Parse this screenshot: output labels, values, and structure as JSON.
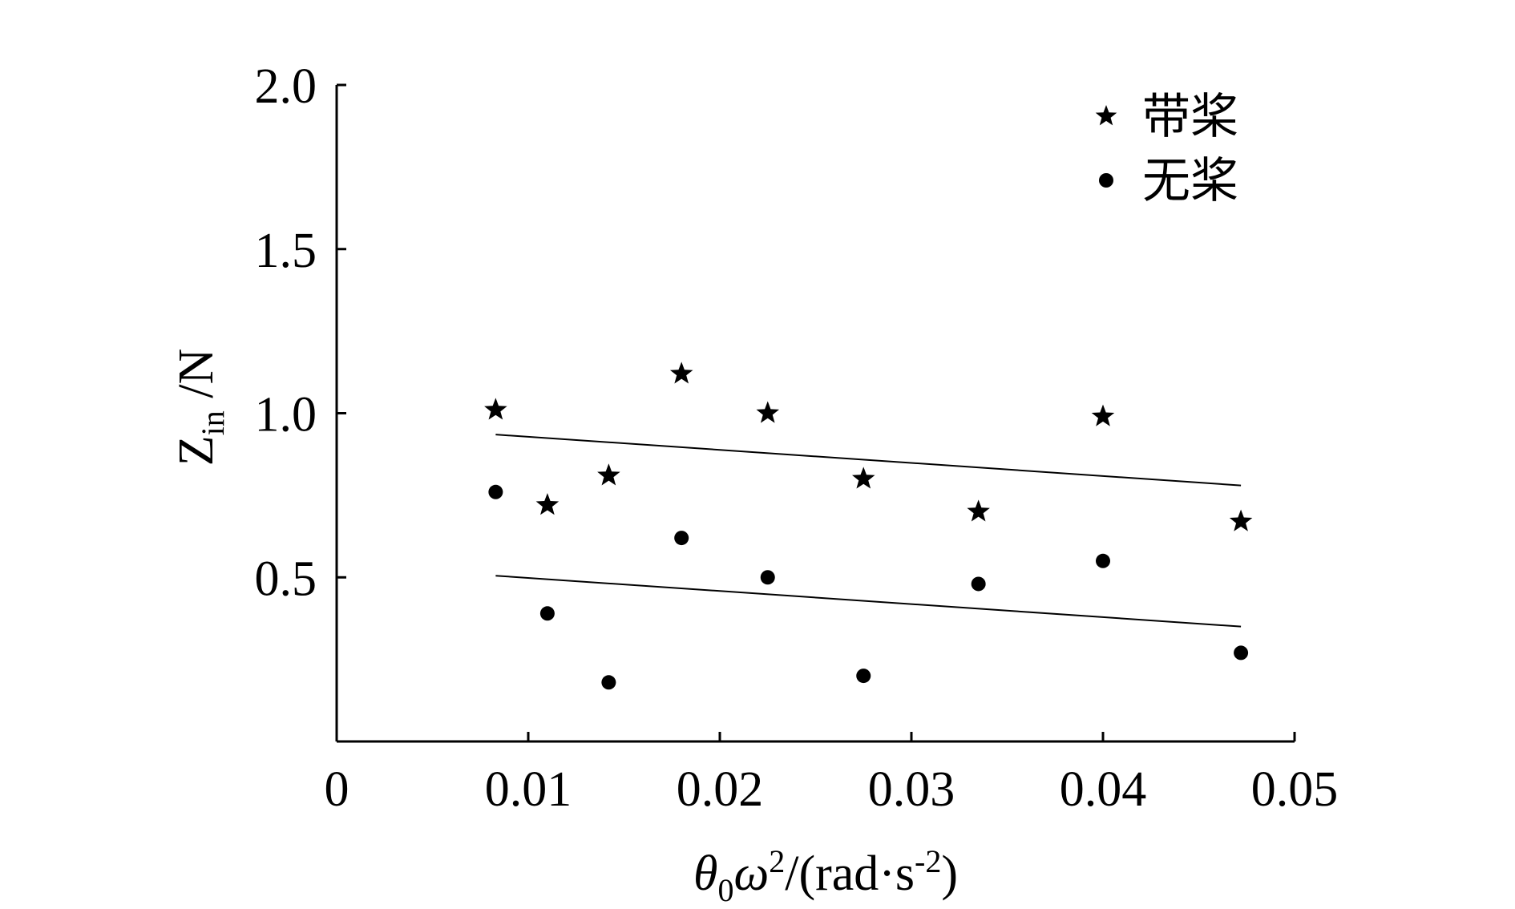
{
  "chart_data": {
    "type": "scatter",
    "xlim": [
      0,
      0.05
    ],
    "ylim": [
      0,
      2.0
    ],
    "x_ticks": [
      "0",
      "0.01",
      "0.02",
      "0.03",
      "0.04",
      "0.05"
    ],
    "y_ticks": [
      "0.5",
      "1.0",
      "1.5",
      "2.0"
    ],
    "xlabel": {
      "theta": "θ",
      "theta_sub": "0",
      "omega": "ω",
      "omega_sup": "2",
      "units": "/(rad·s",
      "units_sup": "-2",
      "close": ")"
    },
    "ylabel": {
      "main": "Z",
      "sub": "in",
      "units": " /N"
    },
    "legend_position": "top-right",
    "series": [
      {
        "name": "带桨",
        "marker": "star",
        "x": [
          0.0083,
          0.011,
          0.0142,
          0.018,
          0.0225,
          0.0275,
          0.0335,
          0.04,
          0.0472
        ],
        "y": [
          1.01,
          0.72,
          0.81,
          1.12,
          1.0,
          0.8,
          0.7,
          0.99,
          0.67
        ],
        "trend": {
          "x": [
            0.0083,
            0.0472
          ],
          "y": [
            0.935,
            0.78
          ]
        }
      },
      {
        "name": "无桨",
        "marker": "circle",
        "x": [
          0.0083,
          0.011,
          0.0142,
          0.018,
          0.0225,
          0.0275,
          0.0335,
          0.04,
          0.0472
        ],
        "y": [
          0.76,
          0.39,
          0.18,
          0.62,
          0.5,
          0.2,
          0.48,
          0.55,
          0.27
        ],
        "trend": {
          "x": [
            0.0083,
            0.0472
          ],
          "y": [
            0.505,
            0.35
          ]
        }
      }
    ]
  }
}
